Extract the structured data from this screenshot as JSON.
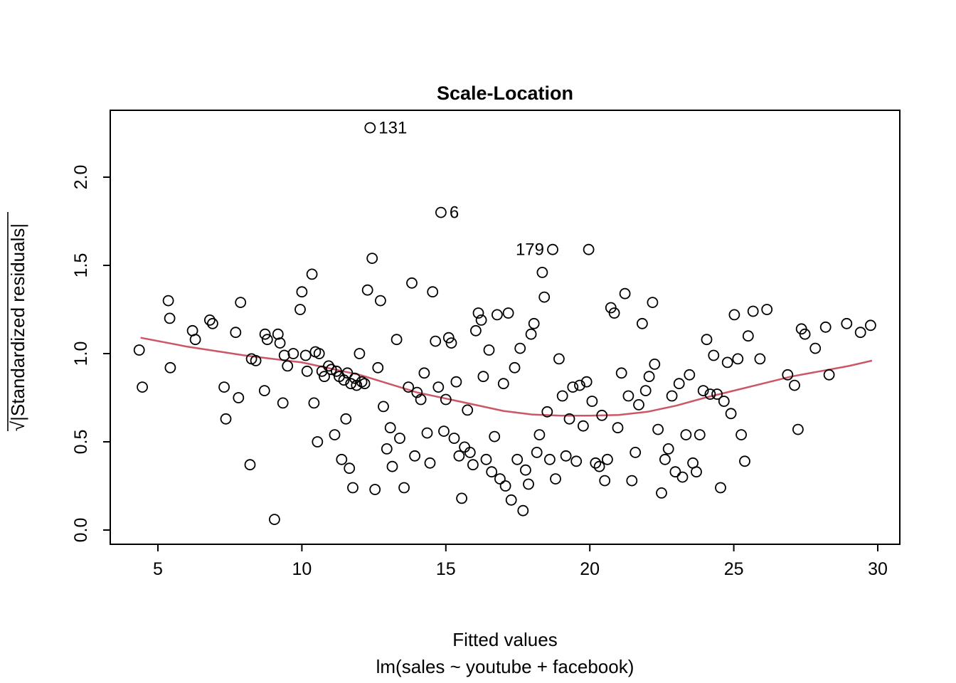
{
  "chart_data": {
    "type": "scatter",
    "title": "Scale-Location",
    "xlabel": "Fitted values",
    "xsublabel": "lm(sales ~ youtube + facebook)",
    "ylabel": "√|Standardized residuals|",
    "x_ticks": [
      "5",
      "10",
      "15",
      "20",
      "25",
      "30"
    ],
    "y_ticks": [
      "0.0",
      "0.5",
      "1.0",
      "1.5",
      "2.0"
    ],
    "xlim": [
      3.3,
      30.8
    ],
    "ylim": [
      -0.05,
      2.4
    ],
    "grid": false,
    "legend": "none",
    "point_style": {
      "shape": "open-circle",
      "color": "#000000"
    },
    "smooth_color": "#cc5566",
    "points": [
      [
        4.35,
        1.02
      ],
      [
        4.46,
        0.81
      ],
      [
        5.36,
        1.3
      ],
      [
        5.41,
        1.2
      ],
      [
        5.43,
        0.92
      ],
      [
        6.2,
        1.13
      ],
      [
        6.3,
        1.08
      ],
      [
        6.8,
        1.19
      ],
      [
        6.9,
        1.17
      ],
      [
        7.3,
        0.81
      ],
      [
        7.36,
        0.63
      ],
      [
        7.7,
        1.12
      ],
      [
        7.8,
        0.75
      ],
      [
        7.87,
        1.29
      ],
      [
        8.2,
        0.37
      ],
      [
        8.25,
        0.97
      ],
      [
        8.4,
        0.96
      ],
      [
        8.7,
        0.79
      ],
      [
        8.72,
        1.11
      ],
      [
        8.8,
        1.08
      ],
      [
        9.05,
        0.06
      ],
      [
        9.17,
        1.11
      ],
      [
        9.24,
        1.06
      ],
      [
        9.34,
        0.72
      ],
      [
        9.39,
        0.99
      ],
      [
        9.5,
        0.93
      ],
      [
        9.7,
        1.0
      ],
      [
        9.94,
        1.25
      ],
      [
        10.0,
        1.35
      ],
      [
        10.13,
        0.99
      ],
      [
        10.18,
        0.9
      ],
      [
        10.35,
        1.45
      ],
      [
        10.42,
        0.72
      ],
      [
        10.47,
        1.01
      ],
      [
        10.54,
        0.5
      ],
      [
        10.6,
        1.0
      ],
      [
        10.7,
        0.9
      ],
      [
        10.78,
        0.87
      ],
      [
        10.93,
        0.93
      ],
      [
        11.02,
        0.91
      ],
      [
        11.14,
        0.54
      ],
      [
        11.2,
        0.9
      ],
      [
        11.3,
        0.87
      ],
      [
        11.38,
        0.4
      ],
      [
        11.46,
        0.85
      ],
      [
        11.53,
        0.63
      ],
      [
        11.58,
        0.89
      ],
      [
        11.65,
        0.35
      ],
      [
        11.7,
        0.83
      ],
      [
        11.77,
        0.24
      ],
      [
        11.84,
        0.86
      ],
      [
        11.9,
        0.82
      ],
      [
        12.0,
        1.0
      ],
      [
        12.08,
        0.84
      ],
      [
        12.18,
        0.83
      ],
      [
        12.28,
        1.36
      ],
      [
        12.37,
        2.28
      ],
      [
        12.44,
        1.54
      ],
      [
        12.54,
        0.23
      ],
      [
        12.64,
        0.92
      ],
      [
        12.73,
        1.3
      ],
      [
        12.83,
        0.7
      ],
      [
        12.95,
        0.46
      ],
      [
        13.07,
        0.58
      ],
      [
        13.14,
        0.36
      ],
      [
        13.29,
        1.08
      ],
      [
        13.4,
        0.52
      ],
      [
        13.55,
        0.24
      ],
      [
        13.7,
        0.81
      ],
      [
        13.82,
        1.4
      ],
      [
        13.92,
        0.42
      ],
      [
        14.0,
        0.78
      ],
      [
        14.13,
        0.74
      ],
      [
        14.25,
        0.89
      ],
      [
        14.35,
        0.55
      ],
      [
        14.45,
        0.38
      ],
      [
        14.54,
        1.35
      ],
      [
        14.64,
        1.07
      ],
      [
        14.74,
        0.81
      ],
      [
        14.83,
        1.8
      ],
      [
        14.93,
        0.56
      ],
      [
        15.0,
        0.74
      ],
      [
        15.1,
        1.09
      ],
      [
        15.19,
        1.06
      ],
      [
        15.29,
        0.52
      ],
      [
        15.36,
        0.84
      ],
      [
        15.46,
        0.42
      ],
      [
        15.55,
        0.18
      ],
      [
        15.65,
        0.47
      ],
      [
        15.75,
        0.68
      ],
      [
        15.84,
        0.44
      ],
      [
        15.94,
        0.37
      ],
      [
        16.04,
        1.13
      ],
      [
        16.13,
        1.23
      ],
      [
        16.23,
        1.19
      ],
      [
        16.3,
        0.87
      ],
      [
        16.4,
        0.4
      ],
      [
        16.5,
        1.02
      ],
      [
        16.59,
        0.33
      ],
      [
        16.69,
        0.53
      ],
      [
        16.78,
        1.22
      ],
      [
        16.88,
        0.29
      ],
      [
        17.0,
        0.83
      ],
      [
        17.07,
        0.25
      ],
      [
        17.17,
        1.23
      ],
      [
        17.27,
        0.17
      ],
      [
        17.39,
        0.92
      ],
      [
        17.48,
        0.4
      ],
      [
        17.58,
        1.03
      ],
      [
        17.68,
        0.11
      ],
      [
        17.77,
        0.34
      ],
      [
        17.87,
        0.26
      ],
      [
        17.96,
        1.11
      ],
      [
        18.06,
        1.17
      ],
      [
        18.16,
        0.44
      ],
      [
        18.25,
        0.54
      ],
      [
        18.35,
        1.46
      ],
      [
        18.42,
        1.32
      ],
      [
        18.52,
        0.67
      ],
      [
        18.61,
        0.4
      ],
      [
        18.71,
        1.59
      ],
      [
        18.81,
        0.29
      ],
      [
        18.93,
        0.97
      ],
      [
        19.05,
        0.76
      ],
      [
        19.17,
        0.42
      ],
      [
        19.29,
        0.63
      ],
      [
        19.41,
        0.81
      ],
      [
        19.53,
        0.39
      ],
      [
        19.65,
        0.82
      ],
      [
        19.77,
        0.59
      ],
      [
        19.89,
        0.84
      ],
      [
        19.96,
        1.59
      ],
      [
        20.08,
        0.73
      ],
      [
        20.2,
        0.38
      ],
      [
        20.33,
        0.36
      ],
      [
        20.42,
        0.65
      ],
      [
        20.52,
        0.28
      ],
      [
        20.61,
        0.4
      ],
      [
        20.73,
        1.26
      ],
      [
        20.85,
        1.23
      ],
      [
        20.97,
        0.58
      ],
      [
        21.1,
        0.89
      ],
      [
        21.22,
        1.34
      ],
      [
        21.34,
        0.76
      ],
      [
        21.46,
        0.28
      ],
      [
        21.58,
        0.44
      ],
      [
        21.7,
        0.71
      ],
      [
        21.82,
        1.17
      ],
      [
        21.94,
        0.79
      ],
      [
        22.06,
        0.87
      ],
      [
        22.18,
        1.29
      ],
      [
        22.25,
        0.94
      ],
      [
        22.37,
        0.57
      ],
      [
        22.49,
        0.21
      ],
      [
        22.61,
        0.4
      ],
      [
        22.73,
        0.46
      ],
      [
        22.85,
        0.76
      ],
      [
        22.97,
        0.33
      ],
      [
        23.1,
        0.83
      ],
      [
        23.22,
        0.3
      ],
      [
        23.34,
        0.54
      ],
      [
        23.46,
        0.88
      ],
      [
        23.58,
        0.38
      ],
      [
        23.7,
        0.33
      ],
      [
        23.82,
        0.54
      ],
      [
        23.94,
        0.79
      ],
      [
        24.06,
        1.08
      ],
      [
        24.18,
        0.77
      ],
      [
        24.3,
        0.99
      ],
      [
        24.42,
        0.77
      ],
      [
        24.54,
        0.24
      ],
      [
        24.66,
        0.73
      ],
      [
        24.78,
        0.95
      ],
      [
        24.9,
        0.66
      ],
      [
        25.02,
        1.22
      ],
      [
        25.14,
        0.97
      ],
      [
        25.26,
        0.54
      ],
      [
        25.38,
        0.39
      ],
      [
        25.5,
        1.1
      ],
      [
        25.67,
        1.24
      ],
      [
        25.91,
        0.97
      ],
      [
        26.15,
        1.25
      ],
      [
        26.87,
        0.88
      ],
      [
        27.11,
        0.82
      ],
      [
        27.23,
        0.57
      ],
      [
        27.35,
        1.14
      ],
      [
        27.47,
        1.11
      ],
      [
        27.83,
        1.03
      ],
      [
        28.19,
        1.15
      ],
      [
        28.31,
        0.88
      ],
      [
        28.92,
        1.17
      ],
      [
        29.4,
        1.12
      ],
      [
        29.75,
        1.16
      ]
    ],
    "labeled_points": [
      {
        "label": "131",
        "x": 12.37,
        "y": 2.28,
        "side": "right"
      },
      {
        "label": "6",
        "x": 14.83,
        "y": 1.8,
        "side": "right"
      },
      {
        "label": "179",
        "x": 18.71,
        "y": 1.59,
        "side": "left"
      }
    ],
    "smooth_line": [
      [
        4.4,
        1.09
      ],
      [
        6,
        1.04
      ],
      [
        8,
        0.99
      ],
      [
        10,
        0.95
      ],
      [
        12,
        0.88
      ],
      [
        14,
        0.78
      ],
      [
        15,
        0.745
      ],
      [
        16,
        0.71
      ],
      [
        17,
        0.675
      ],
      [
        18,
        0.655
      ],
      [
        19,
        0.648
      ],
      [
        20,
        0.648
      ],
      [
        21,
        0.652
      ],
      [
        22,
        0.67
      ],
      [
        23,
        0.705
      ],
      [
        24,
        0.75
      ],
      [
        25,
        0.79
      ],
      [
        26,
        0.83
      ],
      [
        27,
        0.87
      ],
      [
        28,
        0.9
      ],
      [
        29,
        0.93
      ],
      [
        29.8,
        0.96
      ]
    ]
  }
}
